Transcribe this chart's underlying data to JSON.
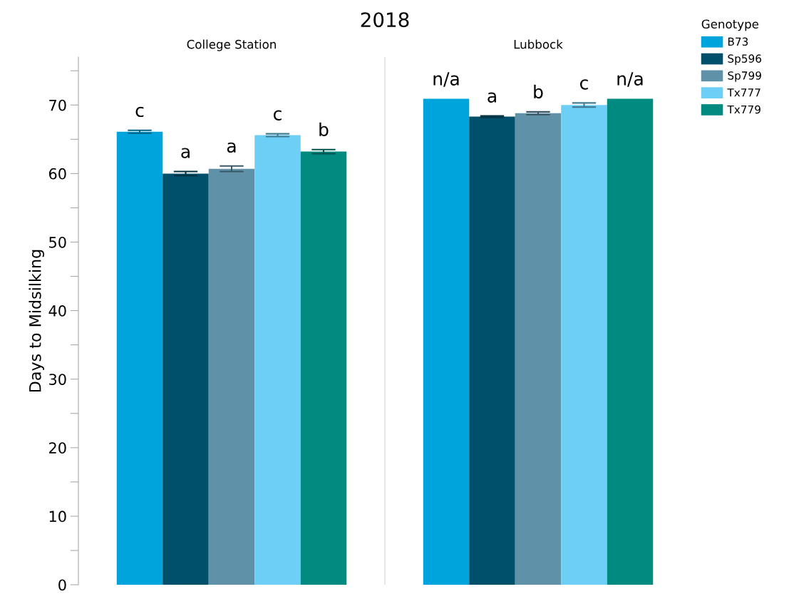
{
  "chart_data": {
    "type": "bar",
    "title": "2018",
    "ylabel": "Days to Midsilking",
    "legend_title": "Genotype",
    "legend": "top right",
    "categories": [
      "College Station",
      "Lubbock"
    ],
    "ylim": [
      0,
      77
    ],
    "yticks": [
      0,
      {
        "value": 5,
        "label": null
      },
      10,
      {
        "value": 15,
        "label": null
      },
      20,
      {
        "value": 25,
        "label": null
      },
      30,
      {
        "value": 35,
        "label": null
      },
      40,
      {
        "value": 45,
        "label": null
      },
      50,
      {
        "value": 55,
        "label": null
      },
      60,
      {
        "value": 65,
        "label": null
      },
      70,
      {
        "value": 75,
        "label": null
      }
    ],
    "grid": false,
    "series": [
      {
        "name": "B73",
        "color": "#00a4dc",
        "values": [
          66.1,
          70.9
        ],
        "errors": [
          0.2,
          null
        ],
        "value_labels": [
          "c",
          "n/a"
        ]
      },
      {
        "name": "Sp596",
        "color": "#01506b",
        "values": [
          60.0,
          68.3
        ],
        "errors": [
          0.3,
          0.1
        ],
        "value_labels": [
          "a",
          "a"
        ]
      },
      {
        "name": "Sp799",
        "color": "#5f91a9",
        "values": [
          60.7,
          68.8
        ],
        "errors": [
          0.4,
          0.2
        ],
        "value_labels": [
          "a",
          "b"
        ]
      },
      {
        "name": "Tx777",
        "color": "#6dcff6",
        "values": [
          65.6,
          70.0
        ],
        "errors": [
          0.2,
          0.3
        ],
        "value_labels": [
          "c",
          "c"
        ]
      },
      {
        "name": "Tx779",
        "color": "#008a80",
        "values": [
          63.2,
          70.9
        ],
        "errors": [
          0.3,
          null
        ],
        "value_labels": [
          "b",
          "n/a"
        ]
      }
    ]
  }
}
